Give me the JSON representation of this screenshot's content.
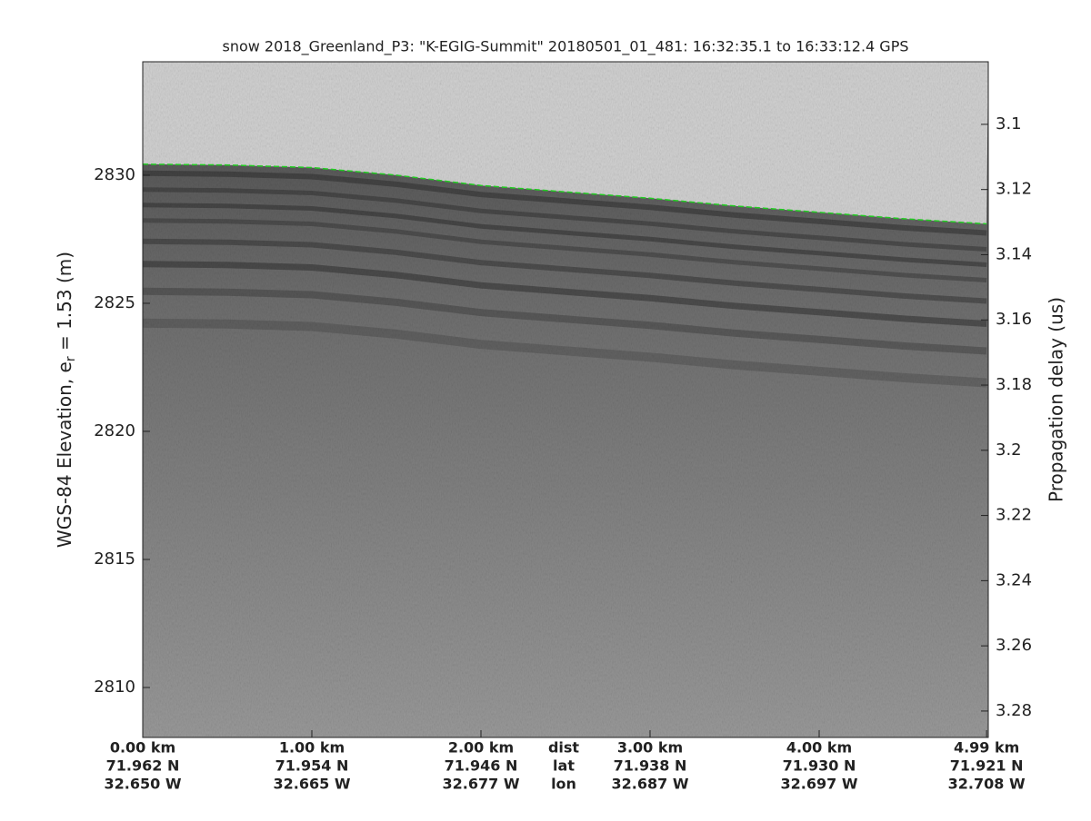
{
  "chart_data": {
    "type": "echogram",
    "title": "snow 2018_Greenland_P3: \"K-EGIG-Summit\"  20180501_01_481: 16:32:35.1 to 16:33:12.4 GPS",
    "ylabel_parts": [
      "WGS-84 Elevation, e",
      "r",
      " = 1.53 (m)"
    ],
    "y2label": "Propagation delay (us)",
    "xlim": [
      0,
      5.0
    ],
    "xticks": [
      {
        "value": 0,
        "label": "0.00 km"
      },
      {
        "value": 1,
        "label": "1.00 km"
      },
      {
        "value": 2,
        "label": "2.00 km"
      },
      {
        "value": 3,
        "label": "3.00 km"
      },
      {
        "value": 4,
        "label": "4.00 km"
      },
      {
        "value": 4.99,
        "label": "4.99 km"
      }
    ],
    "lat_labels": [
      "71.962 N",
      "71.954 N",
      "71.946 N",
      "71.938 N",
      "71.930 N",
      "71.921 N"
    ],
    "lon_labels": [
      "32.650 W",
      "32.665 W",
      "32.677 W",
      "32.687 W",
      "32.697 W",
      "32.708 W"
    ],
    "row_names": [
      "dist",
      "lat",
      "lon"
    ],
    "ylim": [
      2808.05,
      2834.43
    ],
    "yticks": [
      2810,
      2815,
      2820,
      2825,
      2830
    ],
    "y2lim": [
      3.0808,
      3.2881
    ],
    "y2ticks": [
      3.1,
      3.12,
      3.14,
      3.16,
      3.18,
      3.2,
      3.22,
      3.24,
      3.26,
      3.28
    ],
    "surface": {
      "x": [
        0,
        0.5,
        1,
        1.5,
        2,
        2.5,
        3,
        3.5,
        4,
        4.5,
        4.99
      ],
      "values": [
        2830.43,
        2830.4,
        2830.3,
        2830.0,
        2829.6,
        2829.35,
        2829.1,
        2828.8,
        2828.55,
        2828.3,
        2828.1
      ],
      "color": "#22cc22"
    }
  }
}
